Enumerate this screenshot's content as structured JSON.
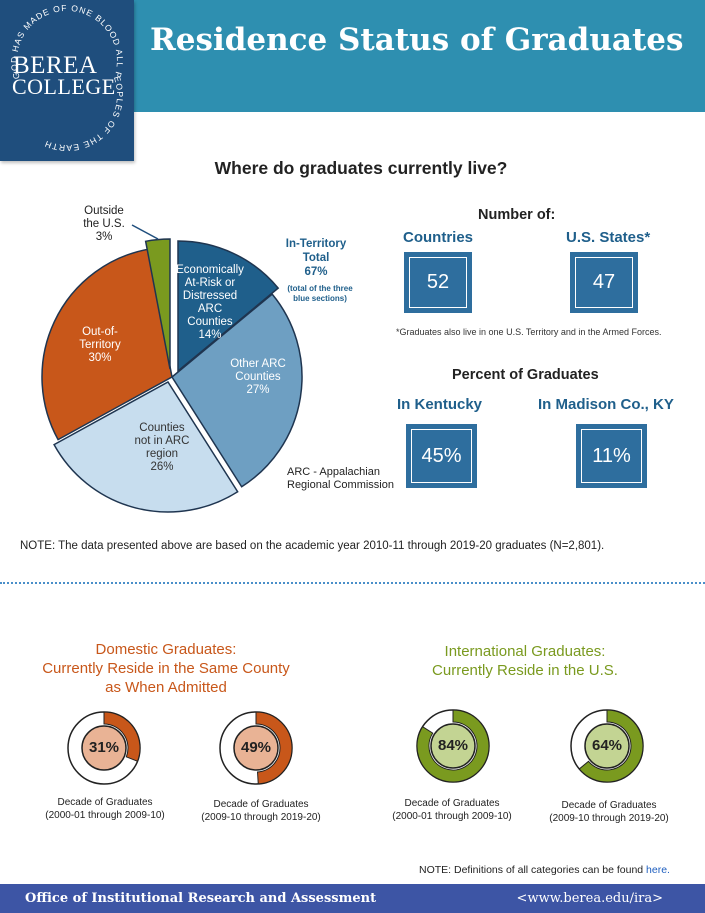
{
  "header": {
    "title": "Residence Status of Graduates",
    "logo": {
      "name_line1": "BEREA",
      "name_line2": "COLLEGE",
      "motto": "GOD HAS MADE OF ONE BLOOD ALL PEOPLES OF THE EARTH"
    }
  },
  "section1": {
    "subtitle": "Where do graduates currently live?",
    "pie": {
      "slices": [
        {
          "key": "econ",
          "label_lines": [
            "Economically",
            "At-Risk or",
            "Distressed",
            "ARC",
            "Counties",
            "14%"
          ],
          "value": 14,
          "color": "#1f5f8b"
        },
        {
          "key": "other_arc",
          "label_lines": [
            "Other ARC",
            "Counties",
            "27%"
          ],
          "value": 27,
          "color": "#6e9fc2"
        },
        {
          "key": "non_arc",
          "label_lines": [
            "Counties",
            "not in ARC",
            "region",
            "26%"
          ],
          "value": 26,
          "color": "#c7ddee"
        },
        {
          "key": "out",
          "label_lines": [
            "Out-of-",
            "Territory",
            "30%"
          ],
          "value": 30,
          "color": "#c8571a"
        },
        {
          "key": "outside_us",
          "label_lines": [
            "Outside",
            "the U.S.",
            "3%"
          ],
          "value": 3,
          "color": "#7a9a1f"
        }
      ],
      "in_territory": {
        "lines": [
          "In-Territory",
          "Total",
          "67%"
        ],
        "note_lines": [
          "(total of the three",
          "blue sections)"
        ]
      },
      "arc_note": {
        "lines": [
          "ARC - Appalachian",
          "Regional Commission"
        ]
      }
    },
    "number_of": {
      "title": "Number of:",
      "countries": {
        "label": "Countries",
        "value": "52"
      },
      "states": {
        "label": "U.S. States*",
        "value": "47"
      },
      "footnote": "*Graduates also live in one U.S. Territory and in the Armed Forces."
    },
    "percent": {
      "title": "Percent of Graduates",
      "kentucky": {
        "label": "In Kentucky",
        "value": "45%"
      },
      "madison": {
        "label": "In Madison Co., KY",
        "value": "11%"
      }
    },
    "note": "NOTE:  The data presented above are based on the academic year 2010-11 through 2019-20 graduates (N=2,801)."
  },
  "section2": {
    "domestic": {
      "title_lines": [
        "Domestic Graduates:",
        "Currently Reside in the Same County",
        "as When Admitted"
      ],
      "color": "#c8571a",
      "inner_color": "#e9b395",
      "donuts": [
        {
          "value": 31,
          "label": "31%",
          "caption_lines": [
            "Decade of Graduates",
            "(2000-01 through 2009-10)"
          ]
        },
        {
          "value": 49,
          "label": "49%",
          "caption_lines": [
            "Decade of Graduates",
            "(2009-10 through 2019-20)"
          ]
        }
      ]
    },
    "international": {
      "title_lines": [
        "International Graduates:",
        "Currently Reside in the U.S."
      ],
      "color": "#7a9a1f",
      "inner_color": "#c3d493",
      "donuts": [
        {
          "value": 84,
          "label": "84%",
          "caption_lines": [
            "Decade of Graduates",
            "(2000-01 through 2009-10)"
          ]
        },
        {
          "value": 64,
          "label": "64%",
          "caption_lines": [
            "Decade of Graduates",
            "(2009-10 through 2019-20)"
          ]
        }
      ]
    },
    "note_text": "NOTE:  Definitions of all categories can be found ",
    "note_link": "here."
  },
  "footer": {
    "office": "Office of Institutional Research and Assessment",
    "url": "<www.berea.edu/ira>"
  }
}
